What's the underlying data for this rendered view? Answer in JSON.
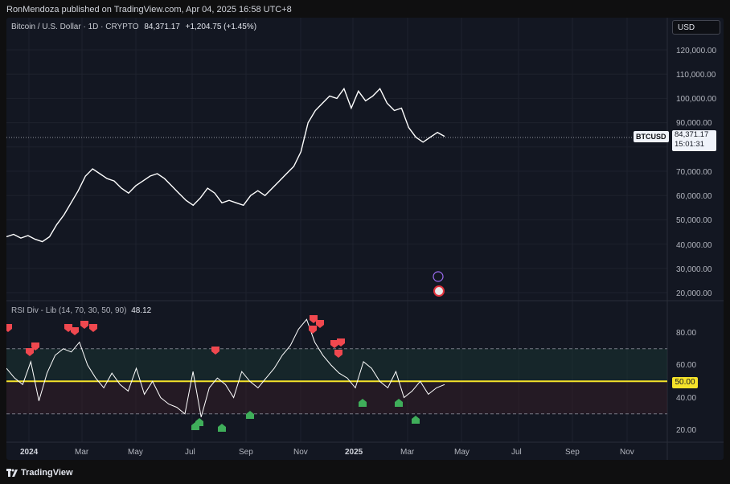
{
  "publisher": "RonMendoza published on TradingView.com, Apr 04, 2025 16:58 UTC+8",
  "symbol": {
    "name": "Bitcoin / U.S. Dollar · 1D · CRYPTO",
    "last": "84,371.17",
    "change": "+1,204.75 (+1.45%)"
  },
  "currency_button": "USD",
  "price_tag": {
    "ticker": "BTCUSD",
    "price": "84,371.17",
    "countdown": "15:01:31"
  },
  "price_axis": [
    "120,000.00",
    "110,000.00",
    "100,000.00",
    "90,000.00",
    "70,000.00",
    "60,000.00",
    "50,000.00",
    "40,000.00",
    "30,000.00",
    "20,000.00"
  ],
  "indicator": {
    "name": "RSI Div - Lib (14, 70, 30, 50, 90)",
    "value": "48.12",
    "axis": [
      "80.00",
      "60.00",
      "40.00",
      "20.00"
    ],
    "midline_label": "50.00"
  },
  "time_axis": [
    "2024",
    "Mar",
    "May",
    "Jul",
    "Sep",
    "Nov",
    "2025",
    "Mar",
    "May",
    "Jul",
    "Sep",
    "Nov"
  ],
  "footer_brand": "TradingView",
  "colors": {
    "background": "#131722",
    "price_line": "#ffffff",
    "midline": "#f5e32a",
    "bear_marker": "#f0484f",
    "bull_marker": "#3fae5a"
  },
  "chart_data": {
    "type": "line",
    "series": [
      {
        "values": [
          43000,
          44000,
          42500,
          43500,
          42000,
          41000,
          43000,
          48000,
          52000,
          57000,
          62000,
          68000,
          71000,
          69000,
          67000,
          66000,
          63000,
          61000,
          64000,
          66000,
          68000,
          69000,
          67000,
          64000,
          61000,
          58000,
          56000,
          59000,
          63000,
          61000,
          57000,
          58000,
          57000,
          56000,
          60000,
          62000,
          60000,
          63000,
          66000,
          69000,
          72000,
          78000,
          90000,
          95000,
          98000,
          101000,
          100000,
          104000,
          96000,
          103000,
          99000,
          101000,
          104000,
          98000,
          95000,
          96000,
          88000,
          84000,
          82000,
          84000,
          86000,
          84371
        ]
      }
    ],
    "rsi": [
      58,
      52,
      48,
      62,
      38,
      55,
      66,
      70,
      68,
      74,
      60,
      52,
      46,
      55,
      48,
      44,
      58,
      42,
      50,
      40,
      36,
      34,
      30,
      56,
      28,
      46,
      52,
      48,
      40,
      56,
      50,
      46,
      52,
      58,
      66,
      72,
      82,
      88,
      74,
      66,
      60,
      55,
      52,
      46,
      62,
      58,
      50,
      46,
      56,
      40,
      44,
      50,
      42,
      46,
      48
    ],
    "bear_markers": 14,
    "bull_markers": 7
  }
}
